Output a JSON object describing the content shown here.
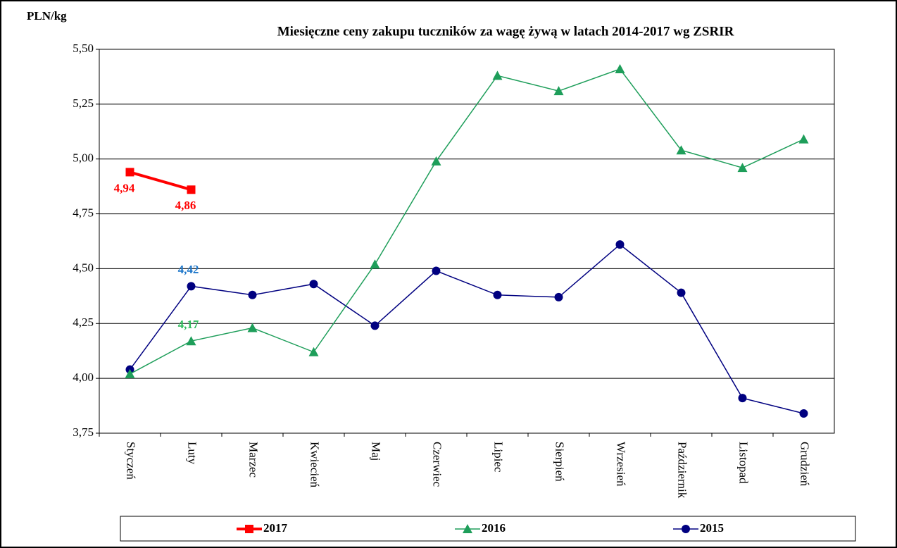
{
  "chart_data": {
    "type": "line",
    "title": "Miesięczne ceny zakupu tuczników za wagę żywą w latach 2014-2017  wg ZSRIR",
    "y_label": "PLN/kg",
    "categories": [
      "Styczeń",
      "Luty",
      "Marzec",
      "Kwiecień",
      "Maj",
      "Czerwiec",
      "Lipiec",
      "Sierpień",
      "Wrzesień",
      "Październik",
      "Listopad",
      "Grudzień"
    ],
    "series": [
      {
        "name": "2017",
        "color": "#ff0000",
        "label_color": "#ff0000",
        "marker": "square",
        "width": 4,
        "values": [
          4.94,
          4.86,
          null,
          null,
          null,
          null,
          null,
          null,
          null,
          null,
          null,
          null
        ],
        "value_labels": [
          "4,94",
          "4,86",
          null,
          null,
          null,
          null,
          null,
          null,
          null,
          null,
          null,
          null
        ]
      },
      {
        "name": "2016",
        "color": "#1e9e5a",
        "label_color": "#2ebd5c",
        "marker": "triangle",
        "width": 1.5,
        "values": [
          4.02,
          4.17,
          4.23,
          4.12,
          4.52,
          4.99,
          5.38,
          5.31,
          5.41,
          5.04,
          4.96,
          5.09
        ],
        "value_labels": [
          null,
          "4,17",
          null,
          null,
          null,
          null,
          null,
          null,
          null,
          null,
          null,
          null
        ]
      },
      {
        "name": "2015",
        "color": "#000080",
        "label_color": "#1b75c9",
        "marker": "circle",
        "width": 1.5,
        "values": [
          4.04,
          4.42,
          4.38,
          4.43,
          4.24,
          4.49,
          4.38,
          4.37,
          4.61,
          4.39,
          3.91,
          3.84
        ],
        "value_labels": [
          null,
          "4,42",
          null,
          null,
          null,
          null,
          null,
          null,
          null,
          null,
          null,
          null
        ]
      }
    ],
    "ylim": [
      3.75,
      5.5
    ],
    "yticks": [
      {
        "value": 3.75,
        "label": "3,75"
      },
      {
        "value": 4,
        "label": "4,00"
      },
      {
        "value": 4.25,
        "label": "4,25"
      },
      {
        "value": 4.5,
        "label": "4,50"
      },
      {
        "value": 4.75,
        "label": "4,75"
      },
      {
        "value": 5,
        "label": "5,00"
      },
      {
        "value": 5.25,
        "label": "5,25"
      },
      {
        "value": 5.5,
        "label": "5,50"
      }
    ],
    "grid": true
  }
}
